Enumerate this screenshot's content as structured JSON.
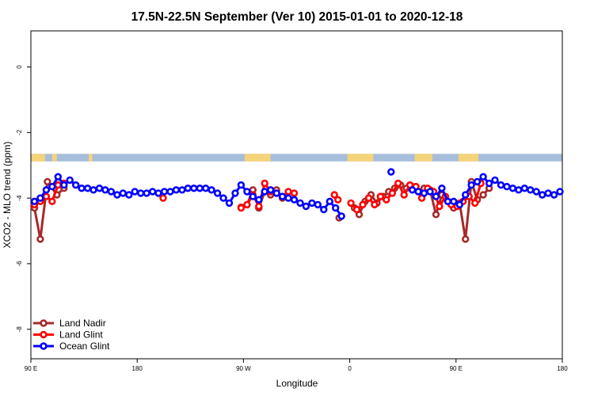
{
  "chart_data": {
    "type": "line",
    "title": "17.5N-22.5N September (Ver 10)   2015-01-01 to 2020-12-18",
    "xlabel": "Longitude",
    "ylabel": "XCO2 - MLO trend (ppm)",
    "xlim": [
      90,
      540
    ],
    "ylim": [
      -8.9,
      1.1
    ],
    "x_ticks": [
      {
        "value": 90,
        "label": "90 E"
      },
      {
        "value": 180,
        "label": "180"
      },
      {
        "value": 270,
        "label": "90 W"
      },
      {
        "value": 360,
        "label": "0"
      },
      {
        "value": 450,
        "label": "90 E"
      },
      {
        "value": 540,
        "label": "180"
      }
    ],
    "y_ticks": [
      {
        "value": 0,
        "label": "0"
      },
      {
        "value": -2,
        "label": "-2"
      },
      {
        "value": -4,
        "label": "-4"
      },
      {
        "value": -6,
        "label": "-6"
      },
      {
        "value": -8,
        "label": "-8"
      }
    ],
    "legend_position": "bottom-left",
    "land_sea_strip": {
      "y_top": -2.65,
      "y_bottom": -2.88,
      "land_color": "#f5d37a",
      "ocean_color": "#a6bddb"
    },
    "series": [
      {
        "name": "Land Nadir",
        "color": "#a52a2a",
        "segments": [
          [
            [
              93,
              -4.3
            ],
            [
              98,
              -5.25
            ],
            [
              104,
              -3.5
            ],
            [
              112,
              -3.9
            ],
            [
              118,
              -3.7
            ]
          ],
          [
            [
              268,
              -4.28
            ],
            [
              273,
              -4.2
            ],
            [
              278,
              -3.75
            ],
            [
              283,
              -4.3
            ],
            [
              288,
              -3.8
            ],
            [
              293,
              -3.9
            ],
            [
              298,
              -3.75
            ],
            [
              303,
              -4.0
            ]
          ],
          [
            [
              351,
              -4.6
            ]
          ],
          [
            [
              364,
              -4.3
            ],
            [
              368,
              -4.5
            ],
            [
              373,
              -4.1
            ],
            [
              378,
              -3.9
            ],
            [
              383,
              -4.15
            ],
            [
              388,
              -3.95
            ],
            [
              393,
              -3.8
            ],
            [
              398,
              -3.7
            ],
            [
              403,
              -3.6
            ],
            [
              408,
              -3.7
            ],
            [
              413,
              -3.65
            ],
            [
              418,
              -3.8
            ],
            [
              423,
              -3.7
            ],
            [
              428,
              -3.75
            ],
            [
              433,
              -4.5
            ],
            [
              438,
              -3.9
            ],
            [
              443,
              -4.1
            ],
            [
              448,
              -4.3
            ],
            [
              453,
              -4.15
            ],
            [
              458,
              -5.25
            ],
            [
              463,
              -3.5
            ],
            [
              468,
              -4.05
            ],
            [
              473,
              -3.9
            ],
            [
              478,
              -3.7
            ]
          ]
        ]
      },
      {
        "name": "Land Glint",
        "color": "#ff0000",
        "segments": [
          [
            [
              93,
              -4.2
            ],
            [
              98,
              -4.1
            ],
            [
              103,
              -3.95
            ],
            [
              108,
              -4.1
            ],
            [
              113,
              -3.6
            ],
            [
              118,
              -3.55
            ]
          ],
          [
            [
              202,
              -4.0
            ]
          ],
          [
            [
              268,
              -4.3
            ],
            [
              273,
              -4.2
            ],
            [
              278,
              -3.9
            ],
            [
              283,
              -4.25
            ],
            [
              288,
              -3.55
            ],
            [
              293,
              -3.8
            ],
            [
              298,
              -3.85
            ],
            [
              303,
              -3.95
            ],
            [
              308,
              -3.8
            ],
            [
              313,
              -3.85
            ]
          ],
          [
            [
              347,
              -3.9
            ],
            [
              350,
              -4.05
            ]
          ],
          [
            [
              361,
              -4.15
            ],
            [
              366,
              -4.35
            ],
            [
              371,
              -4.2
            ],
            [
              376,
              -4.0
            ],
            [
              381,
              -4.2
            ],
            [
              386,
              -3.95
            ],
            [
              391,
              -4.05
            ],
            [
              396,
              -3.85
            ],
            [
              401,
              -3.55
            ],
            [
              406,
              -3.9
            ],
            [
              411,
              -3.6
            ],
            [
              416,
              -3.65
            ],
            [
              421,
              -4.0
            ],
            [
              426,
              -3.7
            ],
            [
              431,
              -3.8
            ],
            [
              436,
              -4.25
            ],
            [
              441,
              -3.95
            ],
            [
              446,
              -4.2
            ],
            [
              451,
              -4.25
            ],
            [
              456,
              -4.1
            ],
            [
              461,
              -3.95
            ],
            [
              466,
              -4.15
            ],
            [
              471,
              -3.55
            ]
          ]
        ]
      },
      {
        "name": "Ocean Glint",
        "color": "#0000ff",
        "segments": [
          [
            [
              93,
              -4.1
            ],
            [
              98,
              -4.0
            ],
            [
              103,
              -3.75
            ],
            [
              108,
              -3.65
            ],
            [
              113,
              -3.35
            ],
            [
              118,
              -3.6
            ],
            [
              123,
              -3.45
            ],
            [
              128,
              -3.6
            ],
            [
              133,
              -3.7
            ],
            [
              138,
              -3.7
            ],
            [
              143,
              -3.75
            ],
            [
              148,
              -3.7
            ],
            [
              153,
              -3.75
            ],
            [
              158,
              -3.8
            ],
            [
              163,
              -3.9
            ],
            [
              168,
              -3.85
            ],
            [
              173,
              -3.9
            ],
            [
              178,
              -3.8
            ],
            [
              183,
              -3.85
            ],
            [
              188,
              -3.85
            ],
            [
              193,
              -3.8
            ],
            [
              198,
              -3.85
            ],
            [
              203,
              -3.8
            ],
            [
              208,
              -3.8
            ],
            [
              213,
              -3.75
            ],
            [
              218,
              -3.75
            ],
            [
              223,
              -3.7
            ],
            [
              228,
              -3.7
            ],
            [
              233,
              -3.7
            ],
            [
              238,
              -3.7
            ],
            [
              243,
              -3.75
            ],
            [
              248,
              -3.85
            ],
            [
              253,
              -4.0
            ],
            [
              258,
              -4.15
            ],
            [
              263,
              -3.85
            ],
            [
              268,
              -3.6
            ],
            [
              273,
              -3.8
            ],
            [
              278,
              -3.95
            ],
            [
              283,
              -4.05
            ],
            [
              288,
              -3.8
            ],
            [
              293,
              -3.75
            ],
            [
              298,
              -3.85
            ],
            [
              303,
              -3.95
            ],
            [
              308,
              -4.0
            ],
            [
              313,
              -4.05
            ],
            [
              318,
              -4.15
            ],
            [
              323,
              -4.25
            ],
            [
              328,
              -4.15
            ],
            [
              333,
              -4.2
            ],
            [
              338,
              -4.35
            ],
            [
              343,
              -4.1
            ],
            [
              348,
              -4.3
            ],
            [
              353,
              -4.55
            ]
          ],
          [
            [
              395,
              -3.2
            ]
          ],
          [
            [
              413,
              -3.75
            ],
            [
              418,
              -3.8
            ],
            [
              423,
              -3.85
            ],
            [
              428,
              -3.8
            ],
            [
              433,
              -3.95
            ],
            [
              438,
              -3.7
            ],
            [
              443,
              -4.1
            ],
            [
              448,
              -4.1
            ],
            [
              453,
              -4.2
            ],
            [
              458,
              -3.9
            ],
            [
              463,
              -3.6
            ],
            [
              468,
              -3.5
            ],
            [
              473,
              -3.35
            ],
            [
              478,
              -3.55
            ],
            [
              483,
              -3.45
            ],
            [
              488,
              -3.6
            ],
            [
              493,
              -3.65
            ],
            [
              498,
              -3.7
            ],
            [
              503,
              -3.75
            ],
            [
              508,
              -3.7
            ],
            [
              513,
              -3.75
            ],
            [
              518,
              -3.8
            ],
            [
              523,
              -3.9
            ],
            [
              528,
              -3.85
            ],
            [
              533,
              -3.9
            ],
            [
              538,
              -3.8
            ]
          ]
        ]
      }
    ]
  }
}
